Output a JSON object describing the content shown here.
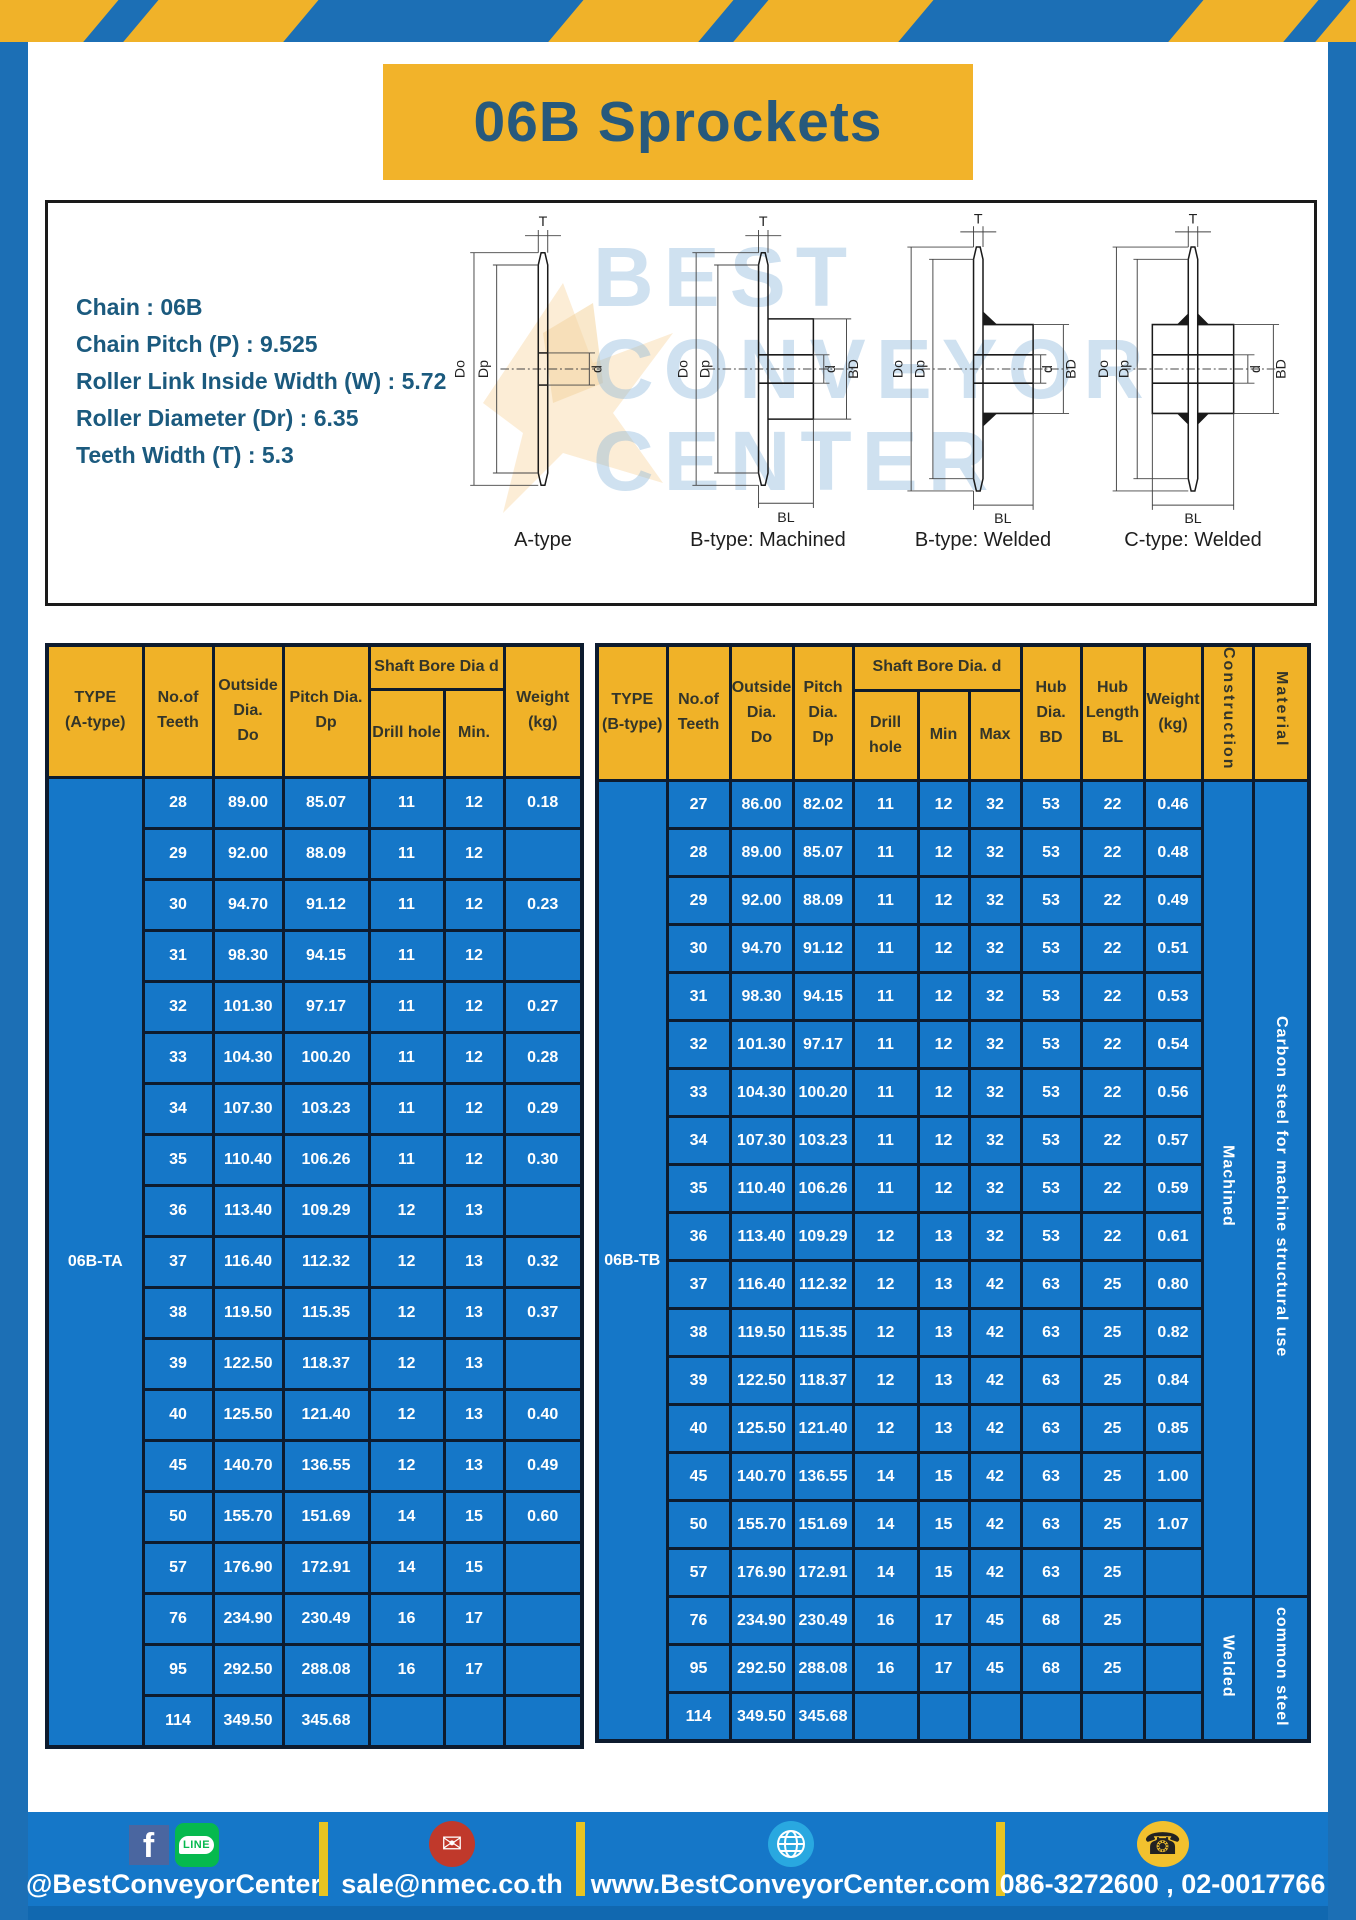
{
  "page": {
    "title": "06B Sprockets"
  },
  "colors": {
    "frame_blue": "#1c6fb5",
    "table_cell_blue": "#1577c8",
    "header_yellow": "#f0b228",
    "title_yellow": "#f2b32a",
    "title_text": "#27597c",
    "stripe_yellow": "#f0b229",
    "footer_blue": "#1577c8",
    "divider_yellow": "#e8c421"
  },
  "diagram_panel": {
    "specs": [
      "Chain : 06B",
      "Chain Pitch (P) : 9.525",
      "Roller Link Inside Width (W) : 5.72",
      "Roller Diameter (Dr) : 6.35",
      "Teeth Width (T) : 5.3"
    ],
    "watermark": "BEST\nCONVEYOR\nCENTER",
    "diagrams": [
      {
        "label": "A-type"
      },
      {
        "label": "B-type: Machined"
      },
      {
        "label": "B-type: Welded"
      },
      {
        "label": "C-type: Welded"
      }
    ],
    "dims": {
      "t": "T",
      "do": "Do",
      "dp": "Dp",
      "d": "d",
      "bd": "BD",
      "bl": "BL"
    }
  },
  "table_a": {
    "headers": {
      "type": "TYPE\n(A-type)",
      "teeth": "No.of\nTeeth",
      "outside": "Outside\nDia.\nDo",
      "pitch": "Pitch Dia.\nDp",
      "shaft_bore": "Shaft Bore Dia d",
      "drill": "Drill hole",
      "min": "Min.",
      "weight": "Weight\n(kg)"
    },
    "type_value": "06B-TA",
    "rows": [
      [
        "28",
        "89.00",
        "85.07",
        "11",
        "12",
        "0.18"
      ],
      [
        "29",
        "92.00",
        "88.09",
        "11",
        "12",
        ""
      ],
      [
        "30",
        "94.70",
        "91.12",
        "11",
        "12",
        "0.23"
      ],
      [
        "31",
        "98.30",
        "94.15",
        "11",
        "12",
        ""
      ],
      [
        "32",
        "101.30",
        "97.17",
        "11",
        "12",
        "0.27"
      ],
      [
        "33",
        "104.30",
        "100.20",
        "11",
        "12",
        "0.28"
      ],
      [
        "34",
        "107.30",
        "103.23",
        "11",
        "12",
        "0.29"
      ],
      [
        "35",
        "110.40",
        "106.26",
        "11",
        "12",
        "0.30"
      ],
      [
        "36",
        "113.40",
        "109.29",
        "12",
        "13",
        ""
      ],
      [
        "37",
        "116.40",
        "112.32",
        "12",
        "13",
        "0.32"
      ],
      [
        "38",
        "119.50",
        "115.35",
        "12",
        "13",
        "0.37"
      ],
      [
        "39",
        "122.50",
        "118.37",
        "12",
        "13",
        ""
      ],
      [
        "40",
        "125.50",
        "121.40",
        "12",
        "13",
        "0.40"
      ],
      [
        "45",
        "140.70",
        "136.55",
        "12",
        "13",
        "0.49"
      ],
      [
        "50",
        "155.70",
        "151.69",
        "14",
        "15",
        "0.60"
      ],
      [
        "57",
        "176.90",
        "172.91",
        "14",
        "15",
        ""
      ],
      [
        "76",
        "234.90",
        "230.49",
        "16",
        "17",
        ""
      ],
      [
        "95",
        "292.50",
        "288.08",
        "16",
        "17",
        ""
      ],
      [
        "114",
        "349.50",
        "345.68",
        "",
        "",
        ""
      ]
    ]
  },
  "table_b": {
    "headers": {
      "type": "TYPE\n(B-type)",
      "teeth": "No.of\nTeeth",
      "outside": "Outside\nDia.\nDo",
      "pitch": "Pitch\nDia.\nDp",
      "shaft_bore": "Shaft Bore Dia. d",
      "drill": "Drill hole",
      "min": "Min",
      "max": "Max",
      "hub_dia": "Hub\nDia.\nBD",
      "hub_len": "Hub\nLength\nBL",
      "weight": "Weight\n(kg)",
      "construction": "Construction",
      "material": "Material"
    },
    "type_value": "06B-TB",
    "rows": [
      [
        "27",
        "86.00",
        "82.02",
        "11",
        "12",
        "32",
        "53",
        "22",
        "0.46"
      ],
      [
        "28",
        "89.00",
        "85.07",
        "11",
        "12",
        "32",
        "53",
        "22",
        "0.48"
      ],
      [
        "29",
        "92.00",
        "88.09",
        "11",
        "12",
        "32",
        "53",
        "22",
        "0.49"
      ],
      [
        "30",
        "94.70",
        "91.12",
        "11",
        "12",
        "32",
        "53",
        "22",
        "0.51"
      ],
      [
        "31",
        "98.30",
        "94.15",
        "11",
        "12",
        "32",
        "53",
        "22",
        "0.53"
      ],
      [
        "32",
        "101.30",
        "97.17",
        "11",
        "12",
        "32",
        "53",
        "22",
        "0.54"
      ],
      [
        "33",
        "104.30",
        "100.20",
        "11",
        "12",
        "32",
        "53",
        "22",
        "0.56"
      ],
      [
        "34",
        "107.30",
        "103.23",
        "11",
        "12",
        "32",
        "53",
        "22",
        "0.57"
      ],
      [
        "35",
        "110.40",
        "106.26",
        "11",
        "12",
        "32",
        "53",
        "22",
        "0.59"
      ],
      [
        "36",
        "113.40",
        "109.29",
        "12",
        "13",
        "32",
        "53",
        "22",
        "0.61"
      ],
      [
        "37",
        "116.40",
        "112.32",
        "12",
        "13",
        "42",
        "63",
        "25",
        "0.80"
      ],
      [
        "38",
        "119.50",
        "115.35",
        "12",
        "13",
        "42",
        "63",
        "25",
        "0.82"
      ],
      [
        "39",
        "122.50",
        "118.37",
        "12",
        "13",
        "42",
        "63",
        "25",
        "0.84"
      ],
      [
        "40",
        "125.50",
        "121.40",
        "12",
        "13",
        "42",
        "63",
        "25",
        "0.85"
      ],
      [
        "45",
        "140.70",
        "136.55",
        "14",
        "15",
        "42",
        "63",
        "25",
        "1.00"
      ],
      [
        "50",
        "155.70",
        "151.69",
        "14",
        "15",
        "42",
        "63",
        "25",
        "1.07"
      ],
      [
        "57",
        "176.90",
        "172.91",
        "14",
        "15",
        "42",
        "63",
        "25",
        ""
      ],
      [
        "76",
        "234.90",
        "230.49",
        "16",
        "17",
        "45",
        "68",
        "25",
        ""
      ],
      [
        "95",
        "292.50",
        "288.08",
        "16",
        "17",
        "45",
        "68",
        "25",
        ""
      ],
      [
        "114",
        "349.50",
        "345.68",
        "",
        "",
        "",
        "",
        "",
        ""
      ]
    ],
    "construction_groups": [
      {
        "label": "Machined",
        "rows": 17
      },
      {
        "label": "Welded",
        "rows": 3
      }
    ],
    "material_groups": [
      {
        "label": "Carbon steel for machine structural use",
        "rows": 17
      },
      {
        "label": "common steel",
        "rows": 3
      }
    ]
  },
  "footer": {
    "social_handle": "@BestConveyorCenter",
    "line_label": "LINE",
    "facebook_letter": "f",
    "email": "sale@nmec.co.th",
    "website": "www.BestConveyorCenter.com",
    "phones": "086-3272600 , 02-0017766",
    "mail_glyph": "✉",
    "phone_glyph": "☎"
  }
}
